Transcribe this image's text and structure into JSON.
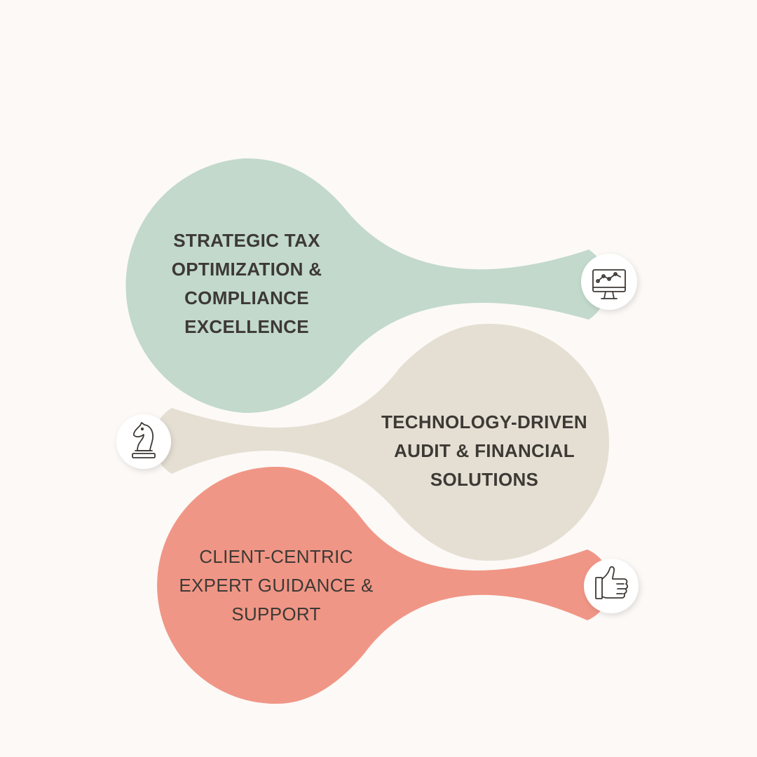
{
  "colors": {
    "background": "#fcf9f6",
    "sage_blob": "#c2d9cc",
    "beige_blob": "#e5dfd3",
    "coral_blob": "#f09686",
    "icon_circle": "#ffffff",
    "icon_stroke": "#3d3935",
    "text": "#3d3935"
  },
  "items": [
    {
      "lines": [
        "STRATEGIC TAX",
        "OPTIMIZATION &",
        "COMPLIANCE",
        "EXCELLENCE"
      ],
      "icon": "monitor-chart-icon"
    },
    {
      "lines": [
        "TECHNOLOGY-DRIVEN",
        "AUDIT & FINANCIAL",
        "SOLUTIONS"
      ],
      "icon": "chess-knight-icon"
    },
    {
      "lines": [
        "CLIENT-CENTRIC",
        "EXPERT GUIDANCE &",
        "SUPPORT"
      ],
      "icon": "thumbs-up-icon"
    }
  ]
}
